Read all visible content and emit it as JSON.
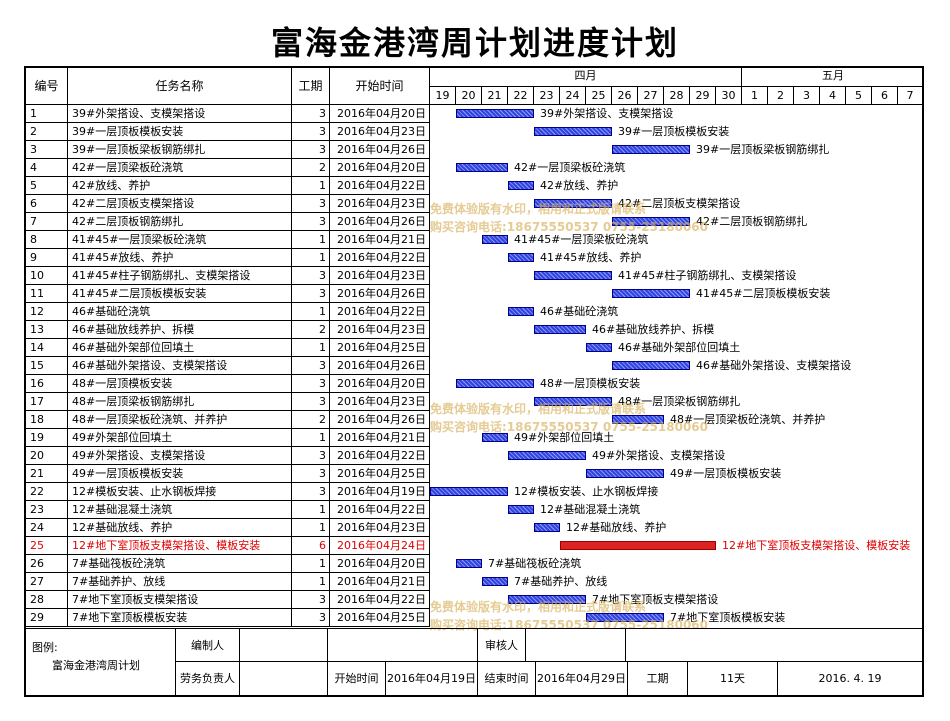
{
  "title": "富海金港湾周计划进度计划",
  "headers": {
    "num": "编号",
    "name": "任务名称",
    "duration": "工期",
    "start": "开始时间"
  },
  "months": [
    "四月",
    "五月"
  ],
  "days": [
    "19",
    "20",
    "21",
    "22",
    "23",
    "24",
    "25",
    "26",
    "27",
    "28",
    "29",
    "30",
    "1",
    "2",
    "3",
    "4",
    "5",
    "6",
    "7"
  ],
  "chart_data": {
    "type": "gantt",
    "title": "富海金港湾周计划进度计划",
    "date_axis": [
      "2016-04-19",
      "2016-04-20",
      "2016-04-21",
      "2016-04-22",
      "2016-04-23",
      "2016-04-24",
      "2016-04-25",
      "2016-04-26",
      "2016-04-27",
      "2016-04-28",
      "2016-04-29",
      "2016-04-30",
      "2016-05-01",
      "2016-05-02",
      "2016-05-03",
      "2016-05-04",
      "2016-05-05",
      "2016-05-06",
      "2016-05-07"
    ],
    "tasks": [
      {
        "id": "1",
        "name": "39#外架搭设、支模架搭设",
        "duration": 3,
        "start": "2016年04月20日",
        "start_date": "2016-04-20"
      },
      {
        "id": "2",
        "name": "39#一层顶板模板安装",
        "duration": 3,
        "start": "2016年04月23日",
        "start_date": "2016-04-23"
      },
      {
        "id": "3",
        "name": "39#一层顶板梁板钢筋绑扎",
        "duration": 3,
        "start": "2016年04月26日",
        "start_date": "2016-04-26"
      },
      {
        "id": "4",
        "name": "42#一层顶梁板砼浇筑",
        "duration": 2,
        "start": "2016年04月20日",
        "start_date": "2016-04-20"
      },
      {
        "id": "5",
        "name": "42#放线、养护",
        "duration": 1,
        "start": "2016年04月22日",
        "start_date": "2016-04-22"
      },
      {
        "id": "6",
        "name": "42#二层顶板支模架搭设",
        "duration": 3,
        "start": "2016年04月23日",
        "start_date": "2016-04-23"
      },
      {
        "id": "7",
        "name": "42#二层顶板钢筋绑扎",
        "duration": 3,
        "start": "2016年04月26日",
        "start_date": "2016-04-26"
      },
      {
        "id": "8",
        "name": "41#45#一层顶梁板砼浇筑",
        "duration": 1,
        "start": "2016年04月21日",
        "start_date": "2016-04-21"
      },
      {
        "id": "9",
        "name": "41#45#放线、养护",
        "duration": 1,
        "start": "2016年04月22日",
        "start_date": "2016-04-22"
      },
      {
        "id": "10",
        "name": "41#45#柱子钢筋绑扎、支模架搭设",
        "duration": 3,
        "start": "2016年04月23日",
        "start_date": "2016-04-23"
      },
      {
        "id": "11",
        "name": "41#45#二层顶板模板安装",
        "duration": 3,
        "start": "2016年04月26日",
        "start_date": "2016-04-26"
      },
      {
        "id": "12",
        "name": "46#基础砼浇筑",
        "duration": 1,
        "start": "2016年04月22日",
        "start_date": "2016-04-22"
      },
      {
        "id": "13",
        "name": "46#基础放线养护、拆模",
        "duration": 2,
        "start": "2016年04月23日",
        "start_date": "2016-04-23"
      },
      {
        "id": "14",
        "name": "46#基础外架部位回填土",
        "duration": 1,
        "start": "2016年04月25日",
        "start_date": "2016-04-25"
      },
      {
        "id": "15",
        "name": "46#基础外架搭设、支模架搭设",
        "duration": 3,
        "start": "2016年04月26日",
        "start_date": "2016-04-26"
      },
      {
        "id": "16",
        "name": "48#一层顶模板安装",
        "duration": 3,
        "start": "2016年04月20日",
        "start_date": "2016-04-20"
      },
      {
        "id": "17",
        "name": "48#一层顶梁板钢筋绑扎",
        "duration": 3,
        "start": "2016年04月23日",
        "start_date": "2016-04-23"
      },
      {
        "id": "18",
        "name": "48#一层顶梁板砼浇筑、并养护",
        "duration": 2,
        "start": "2016年04月26日",
        "start_date": "2016-04-26"
      },
      {
        "id": "19",
        "name": "49#外架部位回填土",
        "duration": 1,
        "start": "2016年04月21日",
        "start_date": "2016-04-21"
      },
      {
        "id": "20",
        "name": "49#外架搭设、支模架搭设",
        "duration": 3,
        "start": "2016年04月22日",
        "start_date": "2016-04-22"
      },
      {
        "id": "21",
        "name": "49#一层顶板模板安装",
        "duration": 3,
        "start": "2016年04月25日",
        "start_date": "2016-04-25"
      },
      {
        "id": "22",
        "name": "12#模板安装、止水钢板焊接",
        "duration": 3,
        "start": "2016年04月19日",
        "start_date": "2016-04-19"
      },
      {
        "id": "23",
        "name": "12#基础混凝土浇筑",
        "duration": 1,
        "start": "2016年04月22日",
        "start_date": "2016-04-22"
      },
      {
        "id": "24",
        "name": "12#基础放线、养护",
        "duration": 1,
        "start": "2016年04月23日",
        "start_date": "2016-04-23"
      },
      {
        "id": "25",
        "name": "12#地下室顶板支模架搭设、模板安装",
        "duration": 6,
        "start": "2016年04月24日",
        "start_date": "2016-04-24",
        "highlight": true
      },
      {
        "id": "26",
        "name": "7#基础筏板砼浇筑",
        "duration": 1,
        "start": "2016年04月20日",
        "start_date": "2016-04-20"
      },
      {
        "id": "27",
        "name": "7#基础养护、放线",
        "duration": 1,
        "start": "2016年04月21日",
        "start_date": "2016-04-21"
      },
      {
        "id": "28",
        "name": "7#地下室顶板支模架搭设",
        "duration": 3,
        "start": "2016年04月22日",
        "start_date": "2016-04-22"
      },
      {
        "id": "29",
        "name": "7#地下室顶板模板安装",
        "duration": 3,
        "start": "2016年04月25日",
        "start_date": "2016-04-25"
      }
    ]
  },
  "watermark": {
    "line1": "免费体验版有水印，相用和正式版请联系",
    "line2": "购买咨询电话:18675550537  0755-25180060"
  },
  "footer": {
    "legend_label": "图例:",
    "project_name": "富海金港湾周计划",
    "editor_label": "编制人",
    "reviewer_label": "审核人",
    "labor_label": "劳务负责人",
    "start_label": "开始时间",
    "start_value": "2016年04月19日",
    "end_label": "结束时间",
    "end_value": "2016年04月29日",
    "duration_label": "工期",
    "duration_value": "11天",
    "date_value": "2016. 4. 19"
  },
  "colors": {
    "bar": "#3344dd",
    "highlight": "#d22222",
    "highlight_text": "#e00000"
  }
}
